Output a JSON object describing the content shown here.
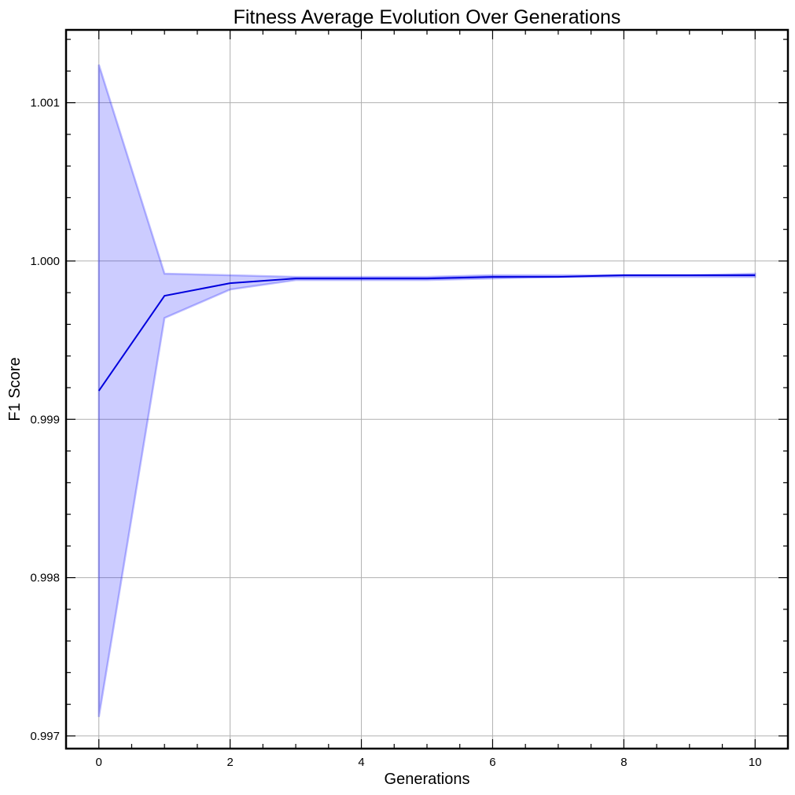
{
  "chart_data": {
    "type": "line",
    "title": "Fitness Average Evolution Over Generations",
    "xlabel": "Generations",
    "ylabel": "F1 Score",
    "xlim": [
      -0.5,
      10.5
    ],
    "ylim": [
      0.99692,
      1.00146
    ],
    "x_ticks": [
      0,
      2,
      4,
      6,
      8,
      10
    ],
    "x_tick_labels": [
      "0",
      "2",
      "4",
      "6",
      "8",
      "10"
    ],
    "y_ticks": [
      0.997,
      0.998,
      0.999,
      1.0,
      1.001
    ],
    "y_tick_labels": [
      "0.997",
      "0.998",
      "0.999",
      "1.000",
      "1.001"
    ],
    "grid": true,
    "x": [
      0,
      1,
      2,
      3,
      4,
      5,
      6,
      7,
      8,
      9,
      10
    ],
    "series": [
      {
        "values": [
          0.99918,
          0.99978,
          0.99986,
          0.99989,
          0.99989,
          0.99989,
          0.9999,
          0.9999,
          0.99991,
          0.99991,
          0.99991
        ],
        "lower": [
          0.99712,
          0.99964,
          0.99982,
          0.99988,
          0.99988,
          0.99988,
          0.99989,
          0.9999,
          0.9999,
          0.9999,
          0.9999
        ],
        "upper": [
          1.00124,
          0.99992,
          0.99991,
          0.9999,
          0.9999,
          0.9999,
          0.99991,
          0.99991,
          0.99991,
          0.99991,
          0.99992
        ],
        "color": "#0000dd",
        "band_color": "#0000ff"
      }
    ]
  }
}
